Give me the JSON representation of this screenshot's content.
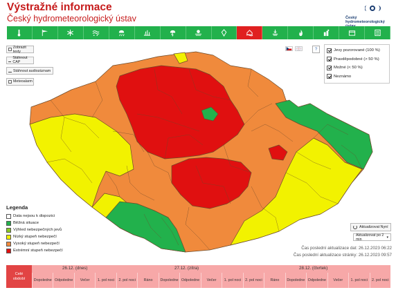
{
  "header": {
    "title": "Výstražné informace",
    "subtitle": "Český hydrometeorologický ústav",
    "logo_lines": [
      "Český",
      "hydrometeorologický",
      "ústav"
    ]
  },
  "toolbar": {
    "items": [
      {
        "icon": "thermometer-icon",
        "active": false
      },
      {
        "icon": "wind-icon",
        "active": false
      },
      {
        "icon": "snow-icon",
        "active": false
      },
      {
        "icon": "snow-drift-icon",
        "active": false
      },
      {
        "icon": "rain-snow-icon",
        "active": false
      },
      {
        "icon": "ice-icon",
        "active": false
      },
      {
        "icon": "thunderstorm-icon",
        "active": false
      },
      {
        "icon": "fog-icon",
        "active": false
      },
      {
        "icon": "heavy-rain-icon",
        "active": false
      },
      {
        "icon": "flood-icon",
        "active": true
      },
      {
        "icon": "drought-icon",
        "active": false
      },
      {
        "icon": "fire-icon",
        "active": false
      },
      {
        "icon": "smog-icon",
        "active": false
      },
      {
        "icon": "other-icon",
        "active": false
      },
      {
        "icon": "list-icon",
        "active": false
      }
    ],
    "colors": {
      "normal": "#22b14c",
      "active": "#e02020"
    }
  },
  "side_buttons": {
    "show_texts": "Zobrazit texty",
    "download_cap": "Stáhnout CAP",
    "download_audio": "Stáhnout audiozáznam",
    "meteoalarm": "Meteoalarm"
  },
  "filters": {
    "items": [
      {
        "label": "Jevy pozorované (100 %)",
        "checked": true
      },
      {
        "label": "Pravděpodobné (> 50 %)",
        "checked": true
      },
      {
        "label": "Možné (< 50 %)",
        "checked": true
      },
      {
        "label": "Neznámo",
        "checked": true
      }
    ],
    "help": "?"
  },
  "legend": {
    "title": "Legenda",
    "items": [
      {
        "label": "Data nejsou k dispozici",
        "color": "#ffffff"
      },
      {
        "label": "Běžná situace",
        "color": "#22b14c"
      },
      {
        "label": "Výhled nebezpečných jevů",
        "color": "#8ac926"
      },
      {
        "label": "Nízký stupeň nebezpečí",
        "color": "#f2f200"
      },
      {
        "label": "Vysoký stupeň nebezpečí",
        "color": "#f08a3c"
      },
      {
        "label": "Extrémní stupeň nebezpečí",
        "color": "#e01010"
      }
    ]
  },
  "controls": {
    "refresh_label": "Aktualizovat Nyní",
    "auto_refresh": "Aktualizovat po 2 min"
  },
  "updates": {
    "data_label": "Čas poslední aktualizace dat:",
    "data_time": "26.12.2023 06:22",
    "page_label": "Čas poslední aktualizace stránky:",
    "page_time": "26.12.2023 09:57"
  },
  "timeline": {
    "first_cell": [
      "Celé",
      "období"
    ],
    "days": [
      "26.12. (dnes)",
      "27.12. (zítra)",
      "28.12. (čtvrtek)"
    ],
    "cells": [
      "Dopoledne",
      "Odpoledne",
      "Večer",
      "1. pol noci",
      "2. pol noci",
      "Ráno",
      "Dopoledne",
      "Odpoledne",
      "Večer",
      "1. pol noci",
      "2. pol noci",
      "Ráno",
      "Dopoledne",
      "Odpoledne",
      "Večer",
      "1. pol noci",
      "2. pol noci"
    ]
  },
  "map_colors": {
    "outline": "#6b4a2a",
    "orange": "#f08a3c",
    "red": "#e01010",
    "yellow": "#f2f200",
    "green": "#22b14c"
  }
}
